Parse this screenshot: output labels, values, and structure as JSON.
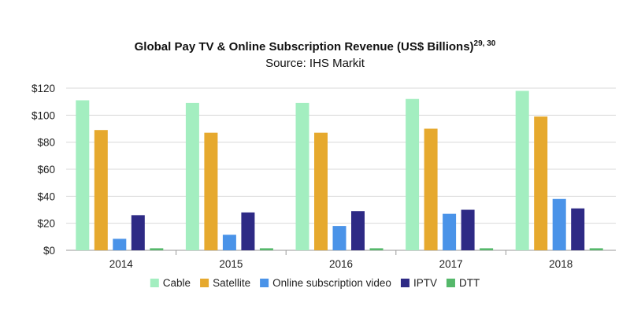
{
  "chart_data": {
    "type": "bar",
    "title": "Global Pay TV & Online Subscription Revenue (US$ Billions)",
    "title_superscript": "29, 30",
    "subtitle": "Source: IHS Markit",
    "categories": [
      "2014",
      "2015",
      "2016",
      "2017",
      "2018"
    ],
    "ylim": [
      0,
      120
    ],
    "yticks": [
      0,
      20,
      40,
      60,
      80,
      100,
      120
    ],
    "ytick_labels": [
      "$0",
      "$20",
      "$40",
      "$60",
      "$80",
      "$100",
      "$120"
    ],
    "grid": true,
    "legend_position": "bottom",
    "series": [
      {
        "name": "Cable",
        "color": "#a3eec0",
        "values": [
          111,
          109,
          109,
          112,
          118
        ]
      },
      {
        "name": "Satellite",
        "color": "#e6a92e",
        "values": [
          89,
          87,
          87,
          90,
          99
        ]
      },
      {
        "name": "Online subscription video",
        "color": "#4a93e8",
        "values": [
          8.5,
          11.5,
          18,
          27,
          38
        ]
      },
      {
        "name": "IPTV",
        "color": "#2e2a85",
        "values": [
          26,
          28,
          29,
          30,
          31
        ]
      },
      {
        "name": "DTT",
        "color": "#55b86a",
        "values": [
          1.5,
          1.5,
          1.5,
          1.5,
          1.5
        ]
      }
    ]
  }
}
